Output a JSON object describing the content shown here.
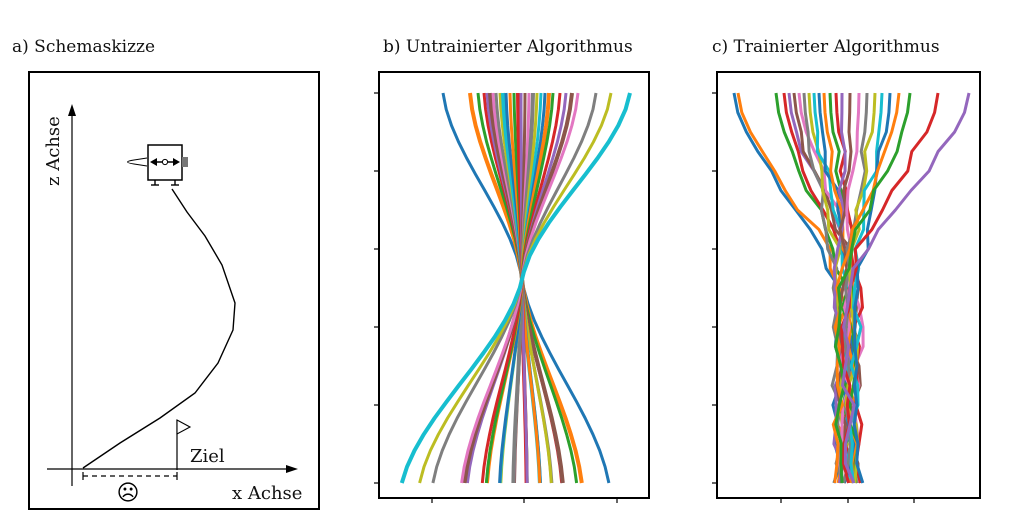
{
  "panels": {
    "a": {
      "title": "a) Schemaskizze",
      "z_axis_label": "z Achse",
      "x_axis_label": "x Achse",
      "target_label": "Ziel",
      "sad_face": "☹"
    },
    "b": {
      "title": "b) Untrainierter Algorithmus"
    },
    "c": {
      "title": "c) Trainierter Algorithmus"
    }
  },
  "palette": [
    "#1f77b4",
    "#ff7f0e",
    "#2ca02c",
    "#d62728",
    "#9467bd",
    "#8c564b",
    "#e377c2",
    "#7f7f7f",
    "#bcbd22",
    "#17becf"
  ]
}
